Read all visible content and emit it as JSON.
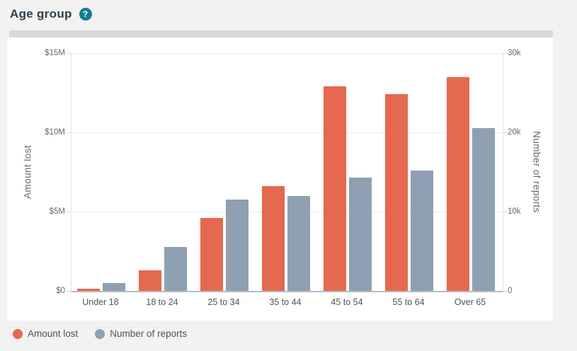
{
  "header": {
    "title": "Age group",
    "help_glyph": "?"
  },
  "colors": {
    "amount": "#e5694e",
    "reports": "#8fa0b2",
    "help_icon": "#137e8f",
    "page_bg": "#f2f2f2",
    "card_bg": "#ffffff",
    "scrollbar": "#d9d9d9"
  },
  "chart_data": {
    "type": "bar",
    "title": "Age group",
    "categories": [
      "Under 18",
      "18 to 24",
      "25 to 34",
      "35 to 44",
      "45 to 54",
      "55 to 64",
      "Over 65"
    ],
    "series": [
      {
        "name": "Amount lost",
        "axis": "left",
        "unit": "million USD",
        "color_key": "amount",
        "values": [
          0.15,
          1.3,
          4.6,
          6.6,
          12.9,
          12.4,
          13.5
        ]
      },
      {
        "name": "Number of reports",
        "axis": "right",
        "unit": "thousand reports",
        "color_key": "reports",
        "values": [
          1.0,
          5.5,
          11.5,
          12.0,
          14.3,
          15.2,
          20.5
        ]
      }
    ],
    "left_axis": {
      "label": "Amount lost",
      "ticks": [
        "$15M",
        "$10M",
        "$5M",
        "$0"
      ],
      "min": 0,
      "max": 15
    },
    "right_axis": {
      "label": "Number of reports",
      "ticks": [
        "30k",
        "20k",
        "10k",
        "0"
      ],
      "min": 0,
      "max": 30
    },
    "grid": "horizontal",
    "legend_position": "bottom-left",
    "legend": [
      {
        "label": "Amount lost",
        "color_key": "amount"
      },
      {
        "label": "Number of reports",
        "color_key": "reports"
      }
    ]
  }
}
